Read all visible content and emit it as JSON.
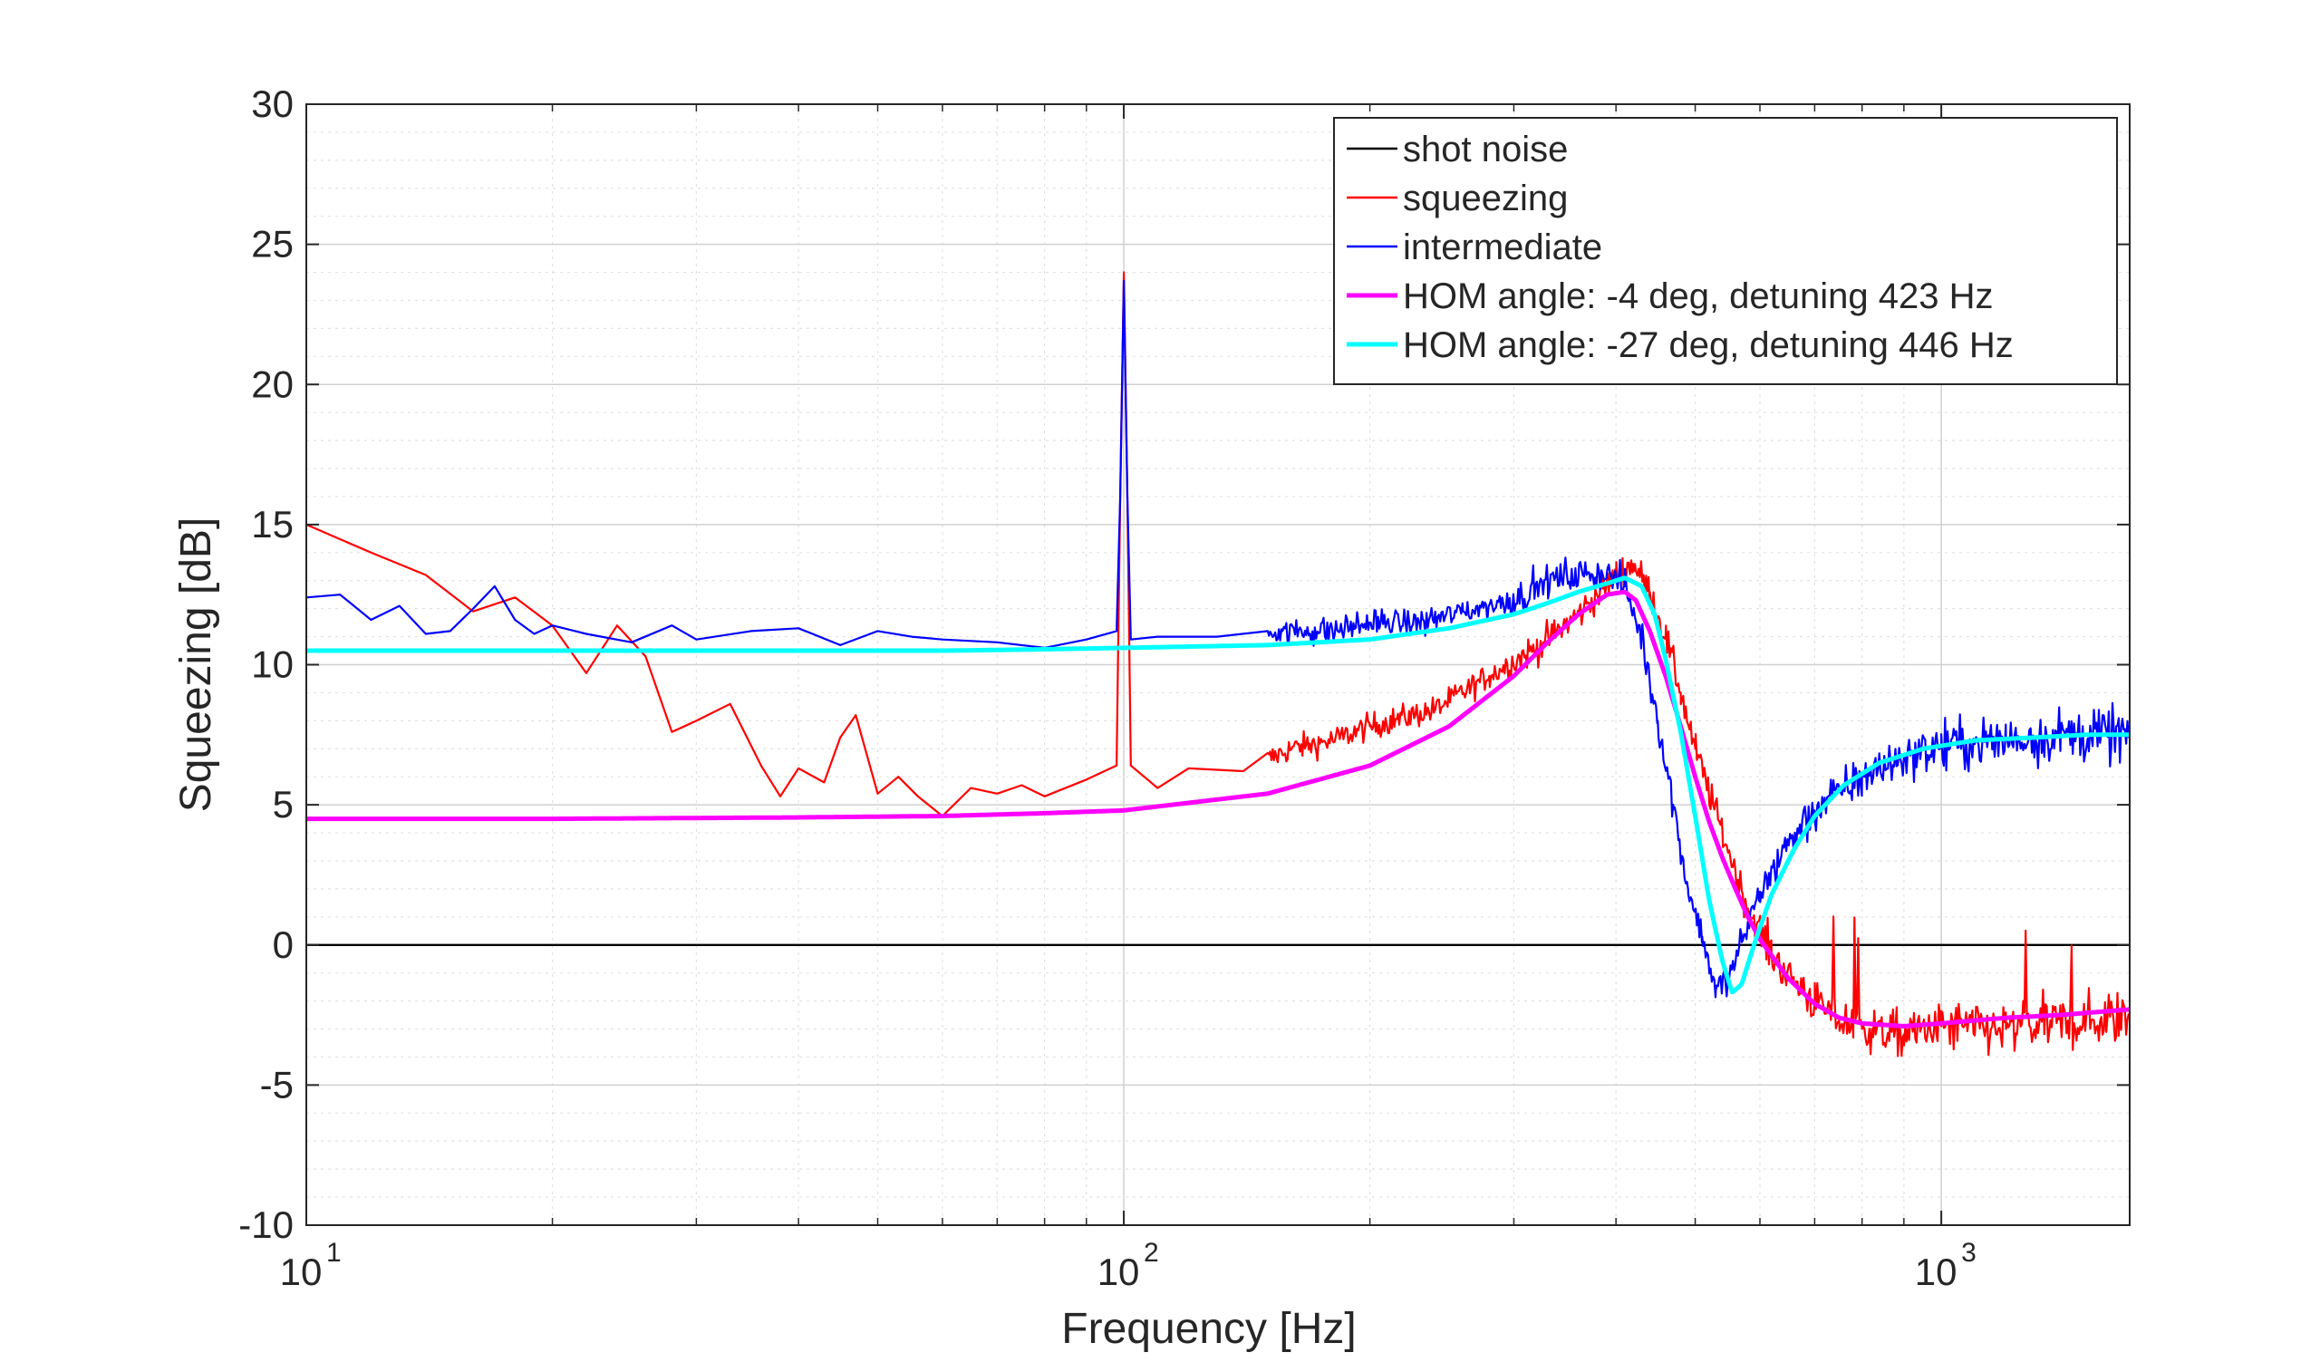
{
  "chart_data": {
    "type": "line",
    "xlabel": "Frequency [Hz]",
    "ylabel": "Squeezing [dB]",
    "x_scale": "log",
    "xlim": [
      10,
      1700
    ],
    "ylim": [
      -10,
      30
    ],
    "grid": true,
    "minor_grid": true,
    "legend_position": "top-right",
    "yticks": [
      -10,
      -5,
      0,
      5,
      10,
      15,
      20,
      25,
      30
    ],
    "ytick_labels": [
      "-10",
      "-5",
      "0",
      "5",
      "10",
      "15",
      "20",
      "25",
      "30"
    ],
    "xticks": [
      {
        "value": 10,
        "base": "10",
        "exp": "1"
      },
      {
        "value": 100,
        "base": "10",
        "exp": "2"
      },
      {
        "value": 1000,
        "base": "10",
        "exp": "3"
      }
    ],
    "series": [
      {
        "name": "shot noise",
        "color": "#000000",
        "style": "thin",
        "x": [
          10,
          1700
        ],
        "y": [
          0,
          0
        ]
      },
      {
        "name": "squeezing",
        "color": "#ff0000",
        "style": "thin-noisy",
        "x": [
          10,
          12,
          14,
          16,
          18,
          20,
          22,
          24,
          26,
          28,
          30,
          33,
          36,
          38,
          40,
          43,
          45,
          47,
          50,
          53,
          56,
          60,
          65,
          70,
          75,
          80,
          90,
          98,
          99,
          100,
          101,
          102,
          110,
          120,
          140,
          160,
          180,
          200,
          240,
          280,
          320,
          360,
          400,
          420,
          440,
          460,
          480,
          500,
          540,
          580,
          620,
          660,
          700,
          750,
          800,
          900,
          1000,
          1200,
          1400,
          1700
        ],
        "y": [
          15.0,
          14.0,
          13.2,
          11.9,
          12.4,
          11.4,
          9.7,
          11.4,
          10.3,
          7.6,
          8.0,
          8.6,
          6.4,
          5.3,
          6.3,
          5.8,
          7.4,
          8.2,
          5.4,
          6.0,
          5.3,
          4.6,
          5.6,
          5.4,
          5.7,
          5.3,
          5.9,
          6.4,
          16.0,
          24.0,
          16.0,
          6.4,
          5.6,
          6.3,
          6.2,
          7.0,
          7.3,
          7.8,
          8.4,
          9.6,
          10.6,
          11.8,
          13.2,
          13.6,
          12.6,
          11.0,
          9.0,
          7.0,
          4.0,
          1.3,
          -0.3,
          -1.3,
          -2.0,
          -2.7,
          -3.0,
          -3.2,
          -2.9,
          -3.0,
          -2.8,
          -2.6
        ]
      },
      {
        "name": "intermediate",
        "color": "#0000ff",
        "style": "thin-noisy",
        "x": [
          10,
          11,
          12,
          13,
          14,
          15,
          16,
          17,
          18,
          19,
          20,
          22,
          25,
          28,
          30,
          35,
          40,
          45,
          50,
          55,
          60,
          70,
          80,
          90,
          98,
          99,
          100,
          101,
          102,
          110,
          130,
          150,
          180,
          200,
          230,
          260,
          300,
          330,
          360,
          390,
          410,
          430,
          450,
          470,
          490,
          510,
          530,
          550,
          570,
          600,
          650,
          700,
          800,
          900,
          1000,
          1200,
          1400,
          1700
        ],
        "y": [
          12.4,
          12.5,
          11.6,
          12.1,
          11.1,
          11.2,
          12.0,
          12.8,
          11.6,
          11.1,
          11.4,
          11.1,
          10.8,
          11.4,
          10.9,
          11.2,
          11.3,
          10.7,
          11.2,
          11.0,
          10.9,
          10.8,
          10.6,
          10.9,
          11.2,
          16.0,
          23.7,
          16.0,
          10.9,
          11.0,
          11.0,
          11.2,
          11.2,
          11.5,
          11.5,
          11.9,
          12.3,
          13.0,
          13.2,
          13.3,
          12.8,
          11.0,
          8.0,
          5.0,
          2.0,
          0.3,
          -1.6,
          -1.2,
          0.1,
          1.9,
          3.6,
          4.8,
          6.0,
          6.7,
          7.1,
          7.3,
          7.5,
          7.5
        ]
      },
      {
        "name": "HOM angle: -4 deg, detuning 423 Hz",
        "color": "#ff00ff",
        "style": "thick",
        "x": [
          10,
          20,
          40,
          60,
          80,
          100,
          150,
          200,
          250,
          300,
          330,
          360,
          390,
          410,
          423,
          440,
          460,
          480,
          500,
          520,
          540,
          560,
          580,
          600,
          650,
          700,
          750,
          800,
          900,
          1000,
          1200,
          1400,
          1700
        ],
        "y": [
          4.5,
          4.5,
          4.55,
          4.6,
          4.7,
          4.8,
          5.4,
          6.4,
          7.8,
          9.6,
          10.8,
          11.8,
          12.5,
          12.6,
          12.3,
          11.2,
          9.6,
          7.8,
          6.0,
          4.4,
          3.1,
          2.0,
          1.0,
          0.2,
          -1.2,
          -2.1,
          -2.6,
          -2.8,
          -2.9,
          -2.8,
          -2.6,
          -2.5,
          -2.3
        ]
      },
      {
        "name": "HOM angle: -27 deg, detuning 446 Hz",
        "color": "#00ffff",
        "style": "thick",
        "x": [
          10,
          20,
          40,
          60,
          80,
          100,
          150,
          200,
          250,
          300,
          330,
          360,
          390,
          410,
          430,
          446,
          460,
          480,
          500,
          520,
          540,
          555,
          570,
          590,
          620,
          660,
          700,
          760,
          840,
          950,
          1100,
          1300,
          1500,
          1700
        ],
        "y": [
          10.5,
          10.5,
          10.5,
          10.5,
          10.55,
          10.6,
          10.7,
          10.9,
          11.3,
          11.8,
          12.2,
          12.6,
          12.9,
          13.1,
          12.8,
          11.8,
          10.2,
          7.6,
          4.6,
          1.6,
          -0.6,
          -1.7,
          -1.4,
          0.0,
          1.8,
          3.4,
          4.6,
          5.7,
          6.5,
          7.0,
          7.3,
          7.4,
          7.5,
          7.5
        ]
      }
    ]
  }
}
